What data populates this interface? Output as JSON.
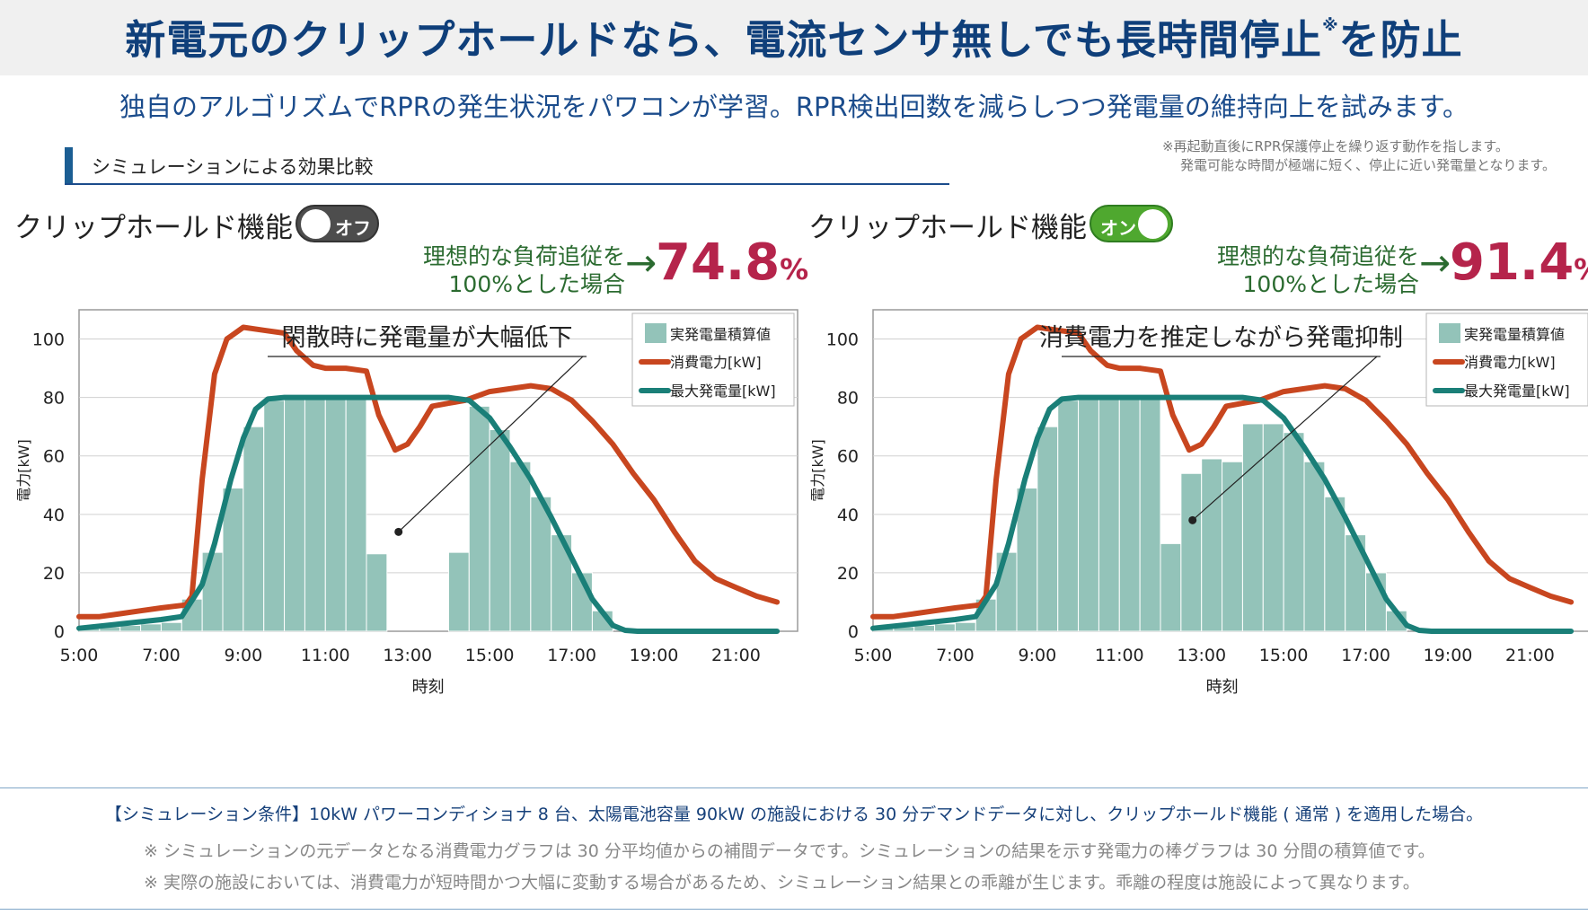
{
  "header": {
    "title": "新電元のクリップホールドなら、電流センサ無しでも長時間停止",
    "title_mark": "※",
    "title_suffix": "を防止",
    "subtitle": "独自のアルゴリズムでRPRの発生状況をパワコンが学習。RPR検出回数を減らしつつ発電量の維持向上を試みます。"
  },
  "section": {
    "label": "シミュレーションによる効果比較"
  },
  "top_note": {
    "line1": "※再起動直後にRPR保護停止を繰り返す動作を指します。",
    "line2": "発電可能な時間が極端に短く、停止に近い発電量となります。"
  },
  "panels": [
    {
      "func_label": "クリップホールド機能",
      "toggle_label": "オフ",
      "toggle_state": "off",
      "ratio_line1": "理想的な負荷追従を",
      "ratio_line2": "100%とした場合",
      "ratio_value": "74.8",
      "ratio_unit": "%",
      "annotation": "閑散時に発電量が大幅低下"
    },
    {
      "func_label": "クリップホールド機能",
      "toggle_label": "オン",
      "toggle_state": "on",
      "ratio_line1": "理想的な負荷追従を",
      "ratio_line2": "100%とした場合",
      "ratio_value": "91.4",
      "ratio_unit": "%",
      "annotation": "消費電力を推定しながら発電抑制"
    }
  ],
  "colors": {
    "bar": "#93c3b9",
    "consumption": "#c8461f",
    "max_power": "#1a7f78"
  },
  "chart_data": [
    {
      "type": "bar",
      "xlabel": "時刻",
      "ylabel": "電力[kW]",
      "ylim": [
        0,
        110
      ],
      "xlim": [
        5,
        22.5
      ],
      "yticks": [
        0,
        20,
        40,
        60,
        80,
        100
      ],
      "xticks": [
        "5:00",
        "7:00",
        "9:00",
        "11:00",
        "13:00",
        "15:00",
        "17:00",
        "19:00",
        "21:00"
      ],
      "xtick_values": [
        5,
        7,
        9,
        11,
        13,
        15,
        17,
        19,
        21
      ],
      "legend": {
        "position": "top-right",
        "entries": [
          "実発電量積算値",
          "消費電力[kW]",
          "最大発電量[kW]"
        ]
      },
      "series": [
        {
          "name": "実発電量積算値",
          "kind": "bar",
          "x": [
            5.0,
            5.5,
            6.0,
            6.5,
            7.0,
            7.5,
            8.0,
            8.5,
            9.0,
            9.5,
            10.0,
            10.5,
            11.0,
            11.5,
            12.0,
            12.5,
            13.0,
            13.5,
            14.0,
            14.5,
            15.0,
            15.5,
            16.0,
            16.5,
            17.0,
            17.5,
            18.0,
            18.5,
            19.0,
            19.5,
            20.0,
            20.5,
            21.0,
            21.5
          ],
          "y": [
            1,
            1.5,
            2,
            2.5,
            3,
            11,
            27,
            49,
            70,
            79,
            80,
            80,
            80,
            80,
            26.5,
            0,
            0,
            0,
            27,
            77,
            69,
            58,
            46,
            33,
            20,
            7,
            0,
            0,
            0,
            0,
            0,
            0,
            0,
            0
          ]
        },
        {
          "name": "消費電力[kW]",
          "kind": "line",
          "x": [
            5.0,
            5.5,
            6.0,
            6.5,
            7.0,
            7.3,
            7.6,
            7.75,
            8.0,
            8.3,
            8.6,
            9.0,
            9.5,
            10.0,
            10.3,
            10.7,
            11.0,
            11.5,
            12.0,
            12.3,
            12.7,
            13.0,
            13.3,
            13.6,
            14.0,
            14.4,
            15.0,
            15.5,
            16.0,
            16.5,
            17.0,
            17.5,
            18.0,
            18.5,
            19.0,
            19.5,
            20.0,
            20.5,
            21.0,
            21.5,
            22.0
          ],
          "y": [
            5,
            5,
            6,
            7,
            8,
            8.5,
            9,
            12,
            52,
            88,
            100,
            104,
            103,
            102,
            96,
            91,
            90,
            90,
            89,
            74,
            62,
            64,
            70,
            77,
            78,
            79,
            82,
            83,
            84,
            83,
            79,
            72,
            64,
            54,
            45,
            34,
            24,
            18,
            15,
            12,
            10
          ]
        },
        {
          "name": "最大発電量[kW]",
          "kind": "line",
          "x": [
            5.0,
            6.0,
            7.0,
            7.5,
            8.0,
            8.3,
            8.7,
            9.0,
            9.3,
            9.6,
            10.0,
            11.0,
            12.0,
            13.0,
            14.0,
            14.5,
            15.0,
            15.5,
            16.0,
            16.5,
            17.0,
            17.5,
            18.0,
            18.3,
            18.6,
            19.0,
            20.0,
            21.0,
            22.0
          ],
          "y": [
            1,
            2.5,
            4,
            5,
            16,
            30,
            52,
            66,
            76,
            79.5,
            80,
            80,
            80,
            80,
            80,
            79,
            73,
            63,
            52,
            39,
            25,
            11,
            2,
            0.3,
            0,
            0,
            0,
            0,
            0
          ]
        }
      ],
      "annotation": {
        "text": "閑散時に発電量が大幅低下",
        "point": [
          13.0,
          34
        ]
      }
    },
    {
      "type": "bar",
      "xlabel": "時刻",
      "ylabel": "電力[kW]",
      "ylim": [
        0,
        110
      ],
      "xlim": [
        5,
        22.5
      ],
      "yticks": [
        0,
        20,
        40,
        60,
        80,
        100
      ],
      "xticks": [
        "5:00",
        "7:00",
        "9:00",
        "11:00",
        "13:00",
        "15:00",
        "17:00",
        "19:00",
        "21:00"
      ],
      "xtick_values": [
        5,
        7,
        9,
        11,
        13,
        15,
        17,
        19,
        21
      ],
      "legend": {
        "position": "top-right",
        "entries": [
          "実発電量積算値",
          "消費電力[kW]",
          "最大発電量[kW]"
        ]
      },
      "series": [
        {
          "name": "実発電量積算値",
          "kind": "bar",
          "x": [
            5.0,
            5.5,
            6.0,
            6.5,
            7.0,
            7.5,
            8.0,
            8.5,
            9.0,
            9.5,
            10.0,
            10.5,
            11.0,
            11.5,
            12.0,
            12.5,
            13.0,
            13.5,
            14.0,
            14.5,
            15.0,
            15.5,
            16.0,
            16.5,
            17.0,
            17.5,
            18.0,
            18.5,
            19.0,
            19.5,
            20.0,
            20.5,
            21.0,
            21.5
          ],
          "y": [
            1,
            1.5,
            2,
            2.5,
            3,
            11,
            27,
            49,
            70,
            79,
            80,
            80,
            80,
            80,
            30,
            54,
            59,
            58,
            71,
            71,
            68,
            58,
            46,
            33,
            20,
            7,
            0,
            0,
            0,
            0,
            0,
            0,
            0,
            0
          ]
        },
        {
          "name": "消費電力[kW]",
          "kind": "line",
          "x": [
            5.0,
            5.5,
            6.0,
            6.5,
            7.0,
            7.3,
            7.6,
            7.75,
            8.0,
            8.3,
            8.6,
            9.0,
            9.5,
            10.0,
            10.3,
            10.7,
            11.0,
            11.5,
            12.0,
            12.3,
            12.7,
            13.0,
            13.3,
            13.6,
            14.0,
            14.4,
            15.0,
            15.5,
            16.0,
            16.5,
            17.0,
            17.5,
            18.0,
            18.5,
            19.0,
            19.5,
            20.0,
            20.5,
            21.0,
            21.5,
            22.0
          ],
          "y": [
            5,
            5,
            6,
            7,
            8,
            8.5,
            9,
            12,
            52,
            88,
            100,
            104,
            103,
            102,
            96,
            91,
            90,
            90,
            89,
            74,
            62,
            64,
            70,
            77,
            78,
            79,
            82,
            83,
            84,
            83,
            79,
            72,
            64,
            54,
            45,
            34,
            24,
            18,
            15,
            12,
            10
          ]
        },
        {
          "name": "最大発電量[kW]",
          "kind": "line",
          "x": [
            5.0,
            6.0,
            7.0,
            7.5,
            8.0,
            8.3,
            8.7,
            9.0,
            9.3,
            9.6,
            10.0,
            11.0,
            12.0,
            13.0,
            14.0,
            14.5,
            15.0,
            15.5,
            16.0,
            16.5,
            17.0,
            17.5,
            18.0,
            18.3,
            18.6,
            19.0,
            20.0,
            21.0,
            22.0
          ],
          "y": [
            1,
            2.5,
            4,
            5,
            16,
            30,
            52,
            66,
            76,
            79.5,
            80,
            80,
            80,
            80,
            80,
            79,
            73,
            63,
            52,
            39,
            25,
            11,
            2,
            0.3,
            0,
            0,
            0,
            0,
            0
          ]
        }
      ],
      "annotation": {
        "text": "消費電力を推定しながら発電抑制",
        "point": [
          13.0,
          38
        ]
      }
    }
  ],
  "footer": {
    "condition": "【シミュレーション条件】10kW パワーコンディショナ 8 台、太陽電池容量 90kW の施設における 30 分デマンドデータに対し、クリップホールド機能 ( 通常 ) を適用した場合。",
    "note1": "※ シミュレーションの元データとなる消費電力グラフは 30 分平均値からの補間データです。シミュレーションの結果を示す発電力の棒グラフは 30 分間の積算値です。",
    "note2": "※ 実際の施設においては、消費電力が短時間かつ大幅に変動する場合があるため、シミュレーション結果との乖離が生じます。乖離の程度は施設によって異なります。"
  }
}
